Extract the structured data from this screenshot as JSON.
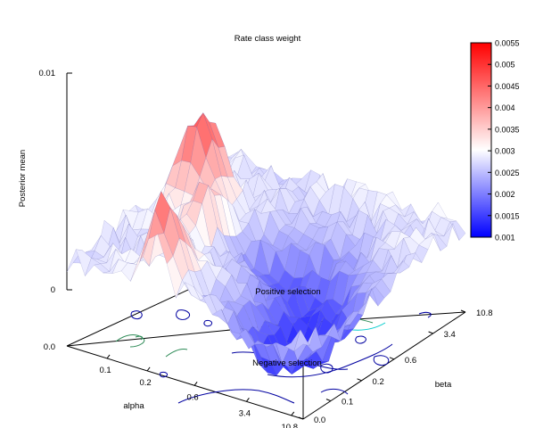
{
  "chart_data": {
    "type": "surface3d",
    "title": "Rate class weight",
    "zlabel": "Posterior mean",
    "xlabel": "alpha",
    "ylabel": "beta",
    "zlim": [
      0,
      0.01
    ],
    "z_ticks": [
      "0.01",
      "0"
    ],
    "base_label": "0.0",
    "alpha_ticks": [
      "0.1",
      "0.2",
      "0.6",
      "3.4",
      "10.8"
    ],
    "beta_ticks": [
      "0.0",
      "0.1",
      "0.2",
      "0.6",
      "3.4",
      "10.8"
    ],
    "colorbar": {
      "min": 0.001,
      "max": 0.0055,
      "ticks": [
        "0.0055",
        "0.005",
        "0.0045",
        "0.004",
        "0.0035",
        "0.003",
        "0.0025",
        "0.002",
        "0.0015",
        "0.001"
      ],
      "low_color": "#0000ff",
      "mid_color": "#ffffff",
      "high_color": "#ff0000"
    },
    "contour_labels": [
      "Positive selection",
      "Negative selection"
    ],
    "contour_colors": [
      "#0000a0",
      "#2e8b57",
      "#00cccc"
    ],
    "grid": false
  }
}
